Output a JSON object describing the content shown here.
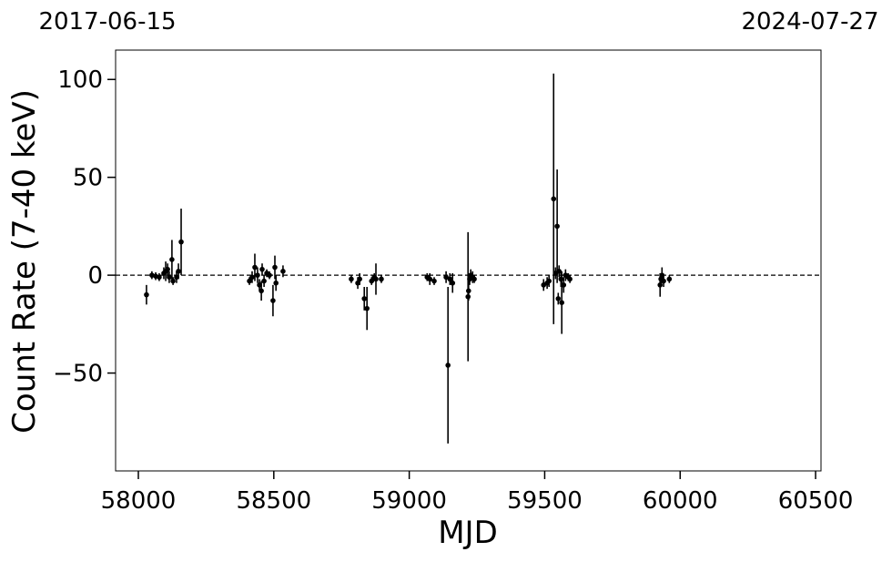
{
  "chart_data": {
    "type": "errorbar",
    "corner_labels": [
      "2017-06-15",
      "2024-07-27"
    ],
    "xlabel": "MJD",
    "ylabel": "Count Rate (7-40 keV)",
    "color": "#000000",
    "reference_line": 0,
    "xlim": [
      57916,
      60520
    ],
    "ylim": [
      -100,
      115
    ],
    "xticks": [
      58000,
      58500,
      59000,
      59500,
      60000,
      60500
    ],
    "yticks": [
      {
        "value": -50,
        "label": "−50"
      },
      0,
      50,
      100
    ],
    "x": [
      58030,
      58050,
      58064,
      58077,
      58094,
      58101,
      58108,
      58114,
      58124,
      58128,
      58141,
      58148,
      58158,
      58410,
      58420,
      58430,
      58440,
      58447,
      58454,
      58457,
      58464,
      58474,
      58484,
      58497,
      58504,
      58508,
      58534,
      58786,
      58810,
      58817,
      58834,
      58844,
      58861,
      58871,
      58877,
      58897,
      59066,
      59076,
      59092,
      59136,
      59143,
      59150,
      59160,
      59217,
      59219,
      59223,
      59227,
      59234,
      59240,
      59496,
      59509,
      59516,
      59533,
      59540,
      59546,
      59550,
      59553,
      59560,
      59563,
      59570,
      59577,
      59587,
      59593,
      59926,
      59929,
      59933,
      59939,
      59960
    ],
    "values": [
      -10,
      0,
      -0.5,
      -1,
      1,
      2,
      3,
      -1,
      8,
      -3,
      -1,
      2,
      17,
      -3,
      -1,
      4,
      0,
      -5,
      -8,
      3,
      -3,
      1,
      0,
      -13,
      4,
      -4,
      2,
      -2,
      -4,
      -2,
      -12,
      -17,
      -3,
      -1,
      -2,
      -2,
      -1,
      -2,
      -3,
      -1,
      -46,
      -2,
      -4,
      -11,
      -8,
      -2,
      0,
      -1,
      -2,
      -5,
      -4,
      -3,
      39,
      1,
      25,
      -12,
      2,
      -2,
      -14,
      -5,
      0,
      -1,
      -2,
      -5,
      -2,
      0,
      -3,
      -2
    ],
    "errors": [
      5,
      2,
      2,
      2,
      3,
      5,
      3,
      3,
      10,
      2,
      3,
      4,
      17,
      2,
      3,
      7,
      4,
      3,
      5,
      3,
      3,
      2,
      2,
      8,
      6,
      4,
      3,
      2,
      3,
      3,
      6,
      11,
      2,
      2,
      8,
      2,
      2,
      3,
      2,
      3,
      40,
      3,
      5,
      33,
      5,
      3,
      3,
      3,
      2,
      3,
      3,
      3,
      64,
      3,
      29,
      3,
      3,
      4,
      16,
      4,
      3,
      2,
      2,
      6,
      3,
      4,
      3,
      2
    ]
  }
}
